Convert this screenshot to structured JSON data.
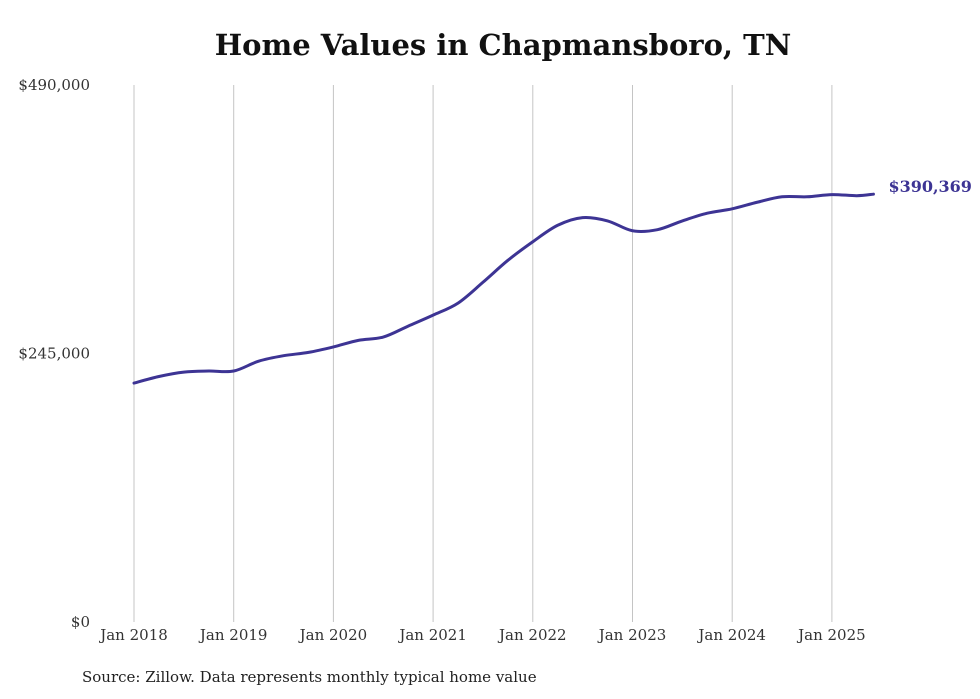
{
  "chart_data": {
    "type": "line",
    "title": "Home Values in Chapmansboro, TN",
    "source": "Source: Zillow. Data represents monthly typical home value",
    "xlabel": "",
    "ylabel": "",
    "ylim": [
      0,
      490000
    ],
    "y_ticks": [
      {
        "value": 0,
        "label": "$0"
      },
      {
        "value": 245000,
        "label": "$245,000"
      },
      {
        "value": 490000,
        "label": "$490,000"
      }
    ],
    "x_ticks": [
      {
        "value": 2018,
        "label": "Jan 2018"
      },
      {
        "value": 2019,
        "label": "Jan 2019"
      },
      {
        "value": 2020,
        "label": "Jan 2020"
      },
      {
        "value": 2021,
        "label": "Jan 2021"
      },
      {
        "value": 2022,
        "label": "Jan 2022"
      },
      {
        "value": 2023,
        "label": "Jan 2023"
      },
      {
        "value": 2024,
        "label": "Jan 2024"
      },
      {
        "value": 2025,
        "label": "Jan 2025"
      }
    ],
    "grid": "vertical",
    "line_color": "#3d3494",
    "end_label": "$390,369",
    "series": [
      {
        "points": [
          {
            "x": "2018-01",
            "y": 218000
          },
          {
            "x": "2018-04",
            "y": 224000
          },
          {
            "x": "2018-07",
            "y": 228000
          },
          {
            "x": "2018-10",
            "y": 229000
          },
          {
            "x": "2019-01",
            "y": 229000
          },
          {
            "x": "2019-04",
            "y": 238000
          },
          {
            "x": "2019-07",
            "y": 243000
          },
          {
            "x": "2019-10",
            "y": 246000
          },
          {
            "x": "2020-01",
            "y": 251000
          },
          {
            "x": "2020-04",
            "y": 257000
          },
          {
            "x": "2020-07",
            "y": 260000
          },
          {
            "x": "2020-10",
            "y": 270000
          },
          {
            "x": "2021-01",
            "y": 280000
          },
          {
            "x": "2021-04",
            "y": 291000
          },
          {
            "x": "2021-07",
            "y": 310000
          },
          {
            "x": "2021-10",
            "y": 330000
          },
          {
            "x": "2022-01",
            "y": 347000
          },
          {
            "x": "2022-04",
            "y": 362000
          },
          {
            "x": "2022-07",
            "y": 369000
          },
          {
            "x": "2022-10",
            "y": 366000
          },
          {
            "x": "2023-01",
            "y": 357000
          },
          {
            "x": "2023-04",
            "y": 358000
          },
          {
            "x": "2023-07",
            "y": 366000
          },
          {
            "x": "2023-10",
            "y": 373000
          },
          {
            "x": "2024-01",
            "y": 377000
          },
          {
            "x": "2024-04",
            "y": 383000
          },
          {
            "x": "2024-07",
            "y": 388000
          },
          {
            "x": "2024-10",
            "y": 388000
          },
          {
            "x": "2025-01",
            "y": 390000
          },
          {
            "x": "2025-04",
            "y": 389000
          },
          {
            "x": "2025-06",
            "y": 390369
          }
        ]
      }
    ]
  }
}
